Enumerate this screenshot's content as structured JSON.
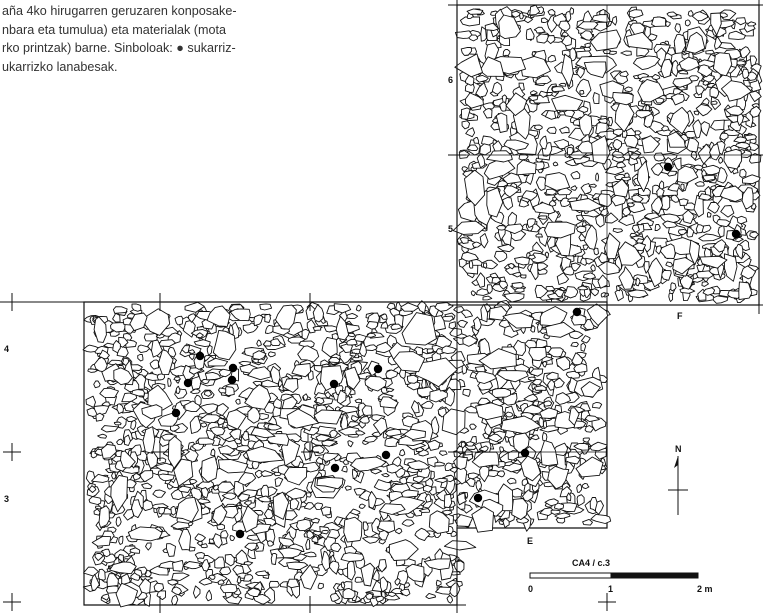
{
  "caption": {
    "lines": [
      "aña 4ko hirugarren geruzaren konposake-",
      "nbara eta tumulua) eta materialak (mota",
      "rko printzak) barne. Sinboloak: ● sukarriz-",
      "ukarrizko lanabesak."
    ]
  },
  "grid": {
    "row_labels": [
      "6",
      "5",
      "4",
      "3"
    ],
    "column_labels": [
      "E",
      "F"
    ],
    "north_label": "N"
  },
  "scale_bar": {
    "title": "CA4 / c.3",
    "ticks": [
      "0",
      "1",
      "2 m"
    ]
  }
}
